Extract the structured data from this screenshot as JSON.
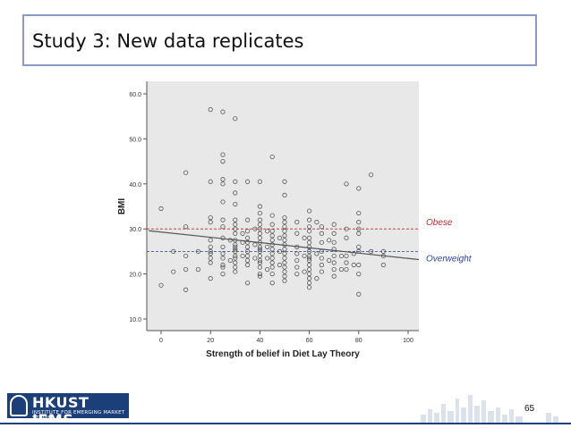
{
  "slide": {
    "title": "Study 3: New data replicates",
    "page_number": "65"
  },
  "logo": {
    "name": "HKUST IEMS",
    "subtitle": "INSTITUTE FOR EMERGING MARKET STUDIES",
    "color": "#1b3f79"
  },
  "chart_data": {
    "type": "scatter",
    "xlabel": "Strength of belief in Diet Lay Theory",
    "ylabel": "BMI",
    "xlim": [
      0,
      105
    ],
    "ylim": [
      8.5,
      61
    ],
    "xticks": [
      0,
      20,
      40,
      60,
      80,
      100
    ],
    "xtick_labels": [
      "0",
      "20",
      "40",
      "60",
      "80",
      "100"
    ],
    "yticks": [
      10,
      20,
      30,
      40,
      50,
      60
    ],
    "ytick_labels": [
      "10.0",
      "20.0",
      "30.0",
      "40.0",
      "50.0",
      "60.0"
    ],
    "background": "#e8e8e8",
    "grid": false,
    "points": [
      [
        0,
        34.5
      ],
      [
        0,
        17.5
      ],
      [
        5,
        20.5
      ],
      [
        5,
        25
      ],
      [
        10,
        42.5
      ],
      [
        10,
        16.5
      ],
      [
        10,
        21
      ],
      [
        10,
        24
      ],
      [
        10,
        30.5
      ],
      [
        15,
        21
      ],
      [
        15,
        25
      ],
      [
        20,
        56.5
      ],
      [
        20,
        40.5
      ],
      [
        20,
        32.5
      ],
      [
        20,
        31.5
      ],
      [
        20,
        27.5
      ],
      [
        20,
        26
      ],
      [
        20,
        25
      ],
      [
        20,
        24.5
      ],
      [
        20,
        23.5
      ],
      [
        20,
        22.5
      ],
      [
        20,
        19
      ],
      [
        25,
        56
      ],
      [
        25,
        46.5
      ],
      [
        25,
        45
      ],
      [
        25,
        41
      ],
      [
        25,
        40
      ],
      [
        25,
        36
      ],
      [
        25,
        32
      ],
      [
        25,
        30.5
      ],
      [
        25,
        28
      ],
      [
        25,
        26
      ],
      [
        25,
        24.5
      ],
      [
        25,
        23.5
      ],
      [
        25,
        22
      ],
      [
        25,
        21.5
      ],
      [
        25,
        20
      ],
      [
        28,
        27.5
      ],
      [
        28,
        23
      ],
      [
        30,
        54.5
      ],
      [
        30,
        40.5
      ],
      [
        30,
        38
      ],
      [
        30,
        35.5
      ],
      [
        30,
        32
      ],
      [
        30,
        31
      ],
      [
        30,
        30
      ],
      [
        30,
        29
      ],
      [
        30,
        27.5
      ],
      [
        30,
        26.5
      ],
      [
        30,
        26
      ],
      [
        30,
        25.5
      ],
      [
        30,
        25
      ],
      [
        30,
        24
      ],
      [
        30,
        23.5
      ],
      [
        30,
        22.5
      ],
      [
        30,
        21.5
      ],
      [
        30,
        20.5
      ],
      [
        33,
        29
      ],
      [
        33,
        27
      ],
      [
        33,
        24
      ],
      [
        35,
        40.5
      ],
      [
        35,
        32
      ],
      [
        35,
        29.5
      ],
      [
        35,
        28
      ],
      [
        35,
        27
      ],
      [
        35,
        26
      ],
      [
        35,
        25
      ],
      [
        35,
        24
      ],
      [
        35,
        23
      ],
      [
        35,
        22
      ],
      [
        35,
        18
      ],
      [
        38,
        30
      ],
      [
        38,
        26.5
      ],
      [
        38,
        23.5
      ],
      [
        40,
        40.5
      ],
      [
        40,
        35
      ],
      [
        40,
        33.5
      ],
      [
        40,
        32
      ],
      [
        40,
        31
      ],
      [
        40,
        30
      ],
      [
        40,
        29
      ],
      [
        40,
        28
      ],
      [
        40,
        27
      ],
      [
        40,
        26
      ],
      [
        40,
        25.5
      ],
      [
        40,
        25
      ],
      [
        40,
        24
      ],
      [
        40,
        23
      ],
      [
        40,
        22.5
      ],
      [
        40,
        21.5
      ],
      [
        40,
        20
      ],
      [
        40,
        19.5
      ],
      [
        43,
        29.5
      ],
      [
        43,
        26
      ],
      [
        43,
        23.5
      ],
      [
        43,
        21
      ],
      [
        45,
        46
      ],
      [
        45,
        33
      ],
      [
        45,
        31
      ],
      [
        45,
        29.5
      ],
      [
        45,
        28.5
      ],
      [
        45,
        27.5
      ],
      [
        45,
        26.5
      ],
      [
        45,
        25.5
      ],
      [
        45,
        24.5
      ],
      [
        45,
        23.5
      ],
      [
        45,
        22.5
      ],
      [
        45,
        21.5
      ],
      [
        45,
        20
      ],
      [
        45,
        18
      ],
      [
        48,
        28
      ],
      [
        48,
        25
      ],
      [
        48,
        22
      ],
      [
        50,
        40.5
      ],
      [
        50,
        37.5
      ],
      [
        50,
        32.5
      ],
      [
        50,
        31.5
      ],
      [
        50,
        30.5
      ],
      [
        50,
        29.5
      ],
      [
        50,
        28.5
      ],
      [
        50,
        27.5
      ],
      [
        50,
        26.5
      ],
      [
        50,
        25.5
      ],
      [
        50,
        24.5
      ],
      [
        50,
        23.5
      ],
      [
        50,
        22.5
      ],
      [
        50,
        21.5
      ],
      [
        50,
        20.5
      ],
      [
        50,
        19.5
      ],
      [
        50,
        18.5
      ],
      [
        55,
        31.5
      ],
      [
        55,
        29
      ],
      [
        55,
        26
      ],
      [
        55,
        24.5
      ],
      [
        55,
        23
      ],
      [
        55,
        21.5
      ],
      [
        55,
        20
      ],
      [
        58,
        28
      ],
      [
        58,
        24
      ],
      [
        58,
        20.5
      ],
      [
        60,
        34
      ],
      [
        60,
        32
      ],
      [
        60,
        30.5
      ],
      [
        60,
        29.5
      ],
      [
        60,
        28
      ],
      [
        60,
        27
      ],
      [
        60,
        26
      ],
      [
        60,
        25
      ],
      [
        60,
        24
      ],
      [
        60,
        23.5
      ],
      [
        60,
        23
      ],
      [
        60,
        22
      ],
      [
        60,
        21
      ],
      [
        60,
        20
      ],
      [
        60,
        19
      ],
      [
        60,
        18
      ],
      [
        60,
        17
      ],
      [
        63,
        31.5
      ],
      [
        63,
        24.5
      ],
      [
        63,
        19
      ],
      [
        65,
        30.5
      ],
      [
        65,
        29
      ],
      [
        65,
        27
      ],
      [
        65,
        25
      ],
      [
        65,
        23.5
      ],
      [
        65,
        22
      ],
      [
        65,
        20.5
      ],
      [
        68,
        27.5
      ],
      [
        68,
        23
      ],
      [
        70,
        31
      ],
      [
        70,
        29
      ],
      [
        70,
        27
      ],
      [
        70,
        25.5
      ],
      [
        70,
        24
      ],
      [
        70,
        22.5
      ],
      [
        70,
        21
      ],
      [
        70,
        19.5
      ],
      [
        73,
        24
      ],
      [
        73,
        21
      ],
      [
        75,
        40
      ],
      [
        75,
        30
      ],
      [
        75,
        28
      ],
      [
        75,
        24
      ],
      [
        75,
        22.5
      ],
      [
        75,
        21
      ],
      [
        78,
        24.5
      ],
      [
        78,
        22
      ],
      [
        80,
        39
      ],
      [
        80,
        33.5
      ],
      [
        80,
        31.5
      ],
      [
        80,
        30
      ],
      [
        80,
        29
      ],
      [
        80,
        26
      ],
      [
        80,
        25
      ],
      [
        80,
        22
      ],
      [
        80,
        20
      ],
      [
        80,
        15.5
      ],
      [
        85,
        42
      ],
      [
        85,
        25
      ],
      [
        90,
        25
      ],
      [
        90,
        24
      ],
      [
        90,
        22
      ]
    ],
    "fit_line": [
      [
        -5,
        29.6
      ],
      [
        105,
        23.2
      ]
    ],
    "reference_lines": [
      {
        "label": "Obese",
        "y": 30,
        "color": "#c0282d"
      },
      {
        "label": "Overweight",
        "y": 25,
        "color": "#2c3ea8"
      }
    ]
  }
}
